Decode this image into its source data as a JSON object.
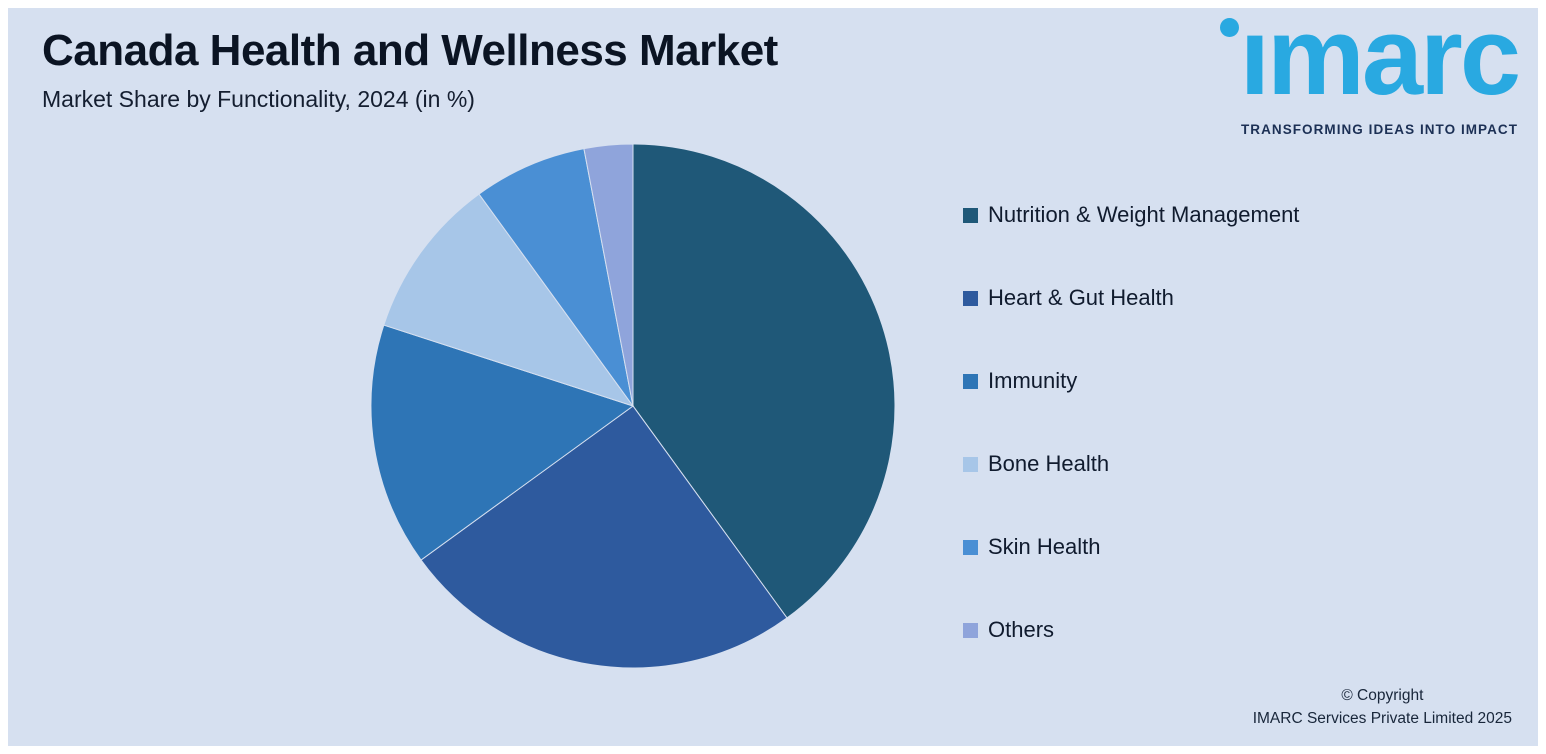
{
  "header": {
    "title": "Canada Health and Wellness Market",
    "subtitle": "Market Share by Functionality, 2024 (in %)"
  },
  "logo": {
    "wordmark": "imarc",
    "tagline": "TRANSFORMING IDEAS INTO IMPACT",
    "brand_color": "#29a9e1"
  },
  "chart_data": {
    "type": "pie",
    "title": "Market Share by Functionality, 2024 (in %)",
    "labels": [
      "Nutrition & Weight Management",
      "Heart & Gut Health",
      "Immunity",
      "Bone Health",
      "Skin Health",
      "Others"
    ],
    "values": [
      40,
      25,
      15,
      10,
      7,
      3
    ],
    "unit": "%",
    "colors": [
      "#1f5878",
      "#2e5a9e",
      "#2e75b6",
      "#a7c6e8",
      "#4a8fd4",
      "#8fa4db"
    ],
    "start_angle_deg": 0,
    "direction": "clockwise",
    "legend_position": "right"
  },
  "footer": {
    "copyright_line1": "© Copyright",
    "copyright_line2": "IMARC Services Private Limited 2025"
  },
  "colors": {
    "background": "#d6e0f0",
    "title_text": "#0b1423",
    "legend_text": "#101b2e"
  }
}
